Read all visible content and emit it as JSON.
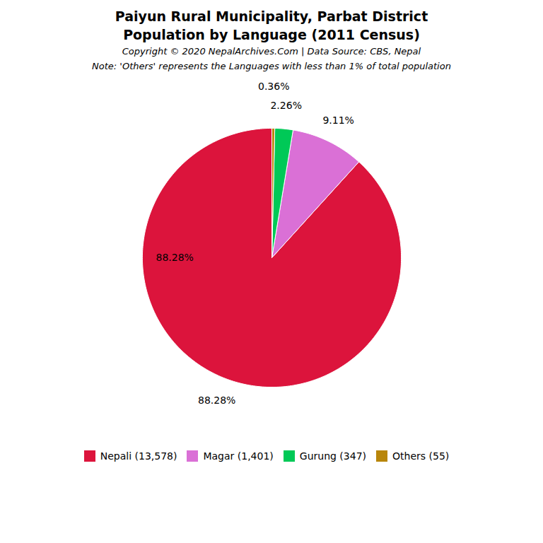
{
  "chart_data": {
    "type": "pie",
    "title": "Paiyun Rural Municipality, Parbat District",
    "subtitle": "Population by Language (2011 Census)",
    "caption": "Copyright © 2020 NepalArchives.Com | Data Source: CBS, Nepal",
    "note": "Note: 'Others' represents the Languages with less than 1% of total population",
    "categories": [
      "Nepali (13,578)",
      "Magar (1,401)",
      "Gurung (347)",
      "Others (55)"
    ],
    "values": [
      88.28,
      9.11,
      2.26,
      0.36
    ],
    "value_labels": [
      "88.28%",
      "9.11%",
      "2.26%",
      "0.36%"
    ],
    "colors": [
      "#DC143C",
      "#DA70D6",
      "#00C957",
      "#B8860B"
    ],
    "data_labels": true,
    "legend": "bottom",
    "annotations": [
      "88.28%"
    ]
  }
}
